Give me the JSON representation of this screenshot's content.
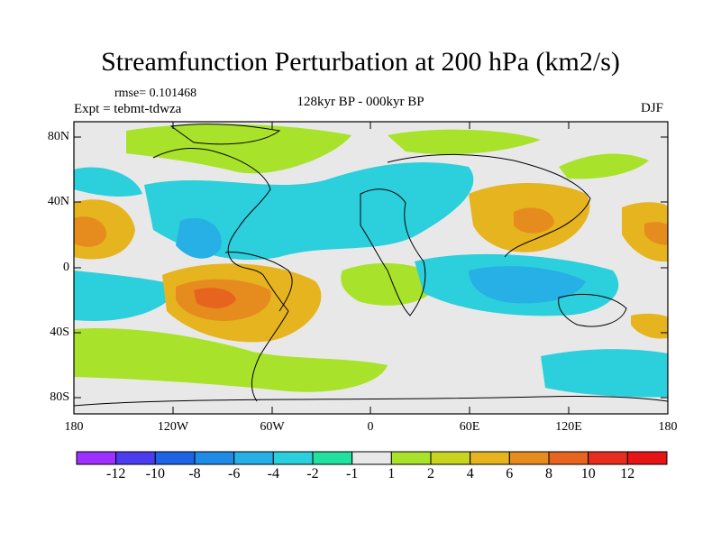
{
  "title": "Streamfunction Perturbation at 200 hPa (km2/s)",
  "stats": {
    "rmse_label": "rmse= 0.101468"
  },
  "experiment": {
    "label": "Expt = tebmt-tdwza"
  },
  "comparison": {
    "label": "128kyr BP - 000kyr BP"
  },
  "season": {
    "label": "DJF"
  },
  "axes": {
    "y_ticks": [
      "80N",
      "40N",
      "0",
      "40S",
      "80S"
    ],
    "x_ticks": [
      "180",
      "120W",
      "60W",
      "0",
      "60E",
      "120E",
      "180"
    ]
  },
  "colorbar": {
    "labels": [
      "-12",
      "-10",
      "-8",
      "-6",
      "-4",
      "-2",
      "-1",
      "1",
      "2",
      "4",
      "6",
      "8",
      "10",
      "12"
    ],
    "colors": [
      "#9b30ff",
      "#4b3cf0",
      "#1e64e6",
      "#1e8ce6",
      "#26b0e6",
      "#2ccfdc",
      "#22e0a0",
      "#e8e8e8",
      "#a8e22a",
      "#c8d41e",
      "#e6b41e",
      "#e68c1e",
      "#e6641e",
      "#e62d1e",
      "#e61414"
    ]
  },
  "map": {
    "background": "#e8e8e8",
    "fields": [
      {
        "name": "pos-arctic-canada",
        "color": "#a8e22a"
      },
      {
        "name": "pos-north-pacific-east",
        "color": "#e6b41e"
      },
      {
        "name": "neg-atlantic",
        "color": "#2ccfdc"
      },
      {
        "name": "pos-south-america",
        "color": "#e68c1e"
      },
      {
        "name": "pos-asia",
        "color": "#e6b41e"
      },
      {
        "name": "neg-indian-ocean",
        "color": "#26b0e6"
      }
    ]
  }
}
